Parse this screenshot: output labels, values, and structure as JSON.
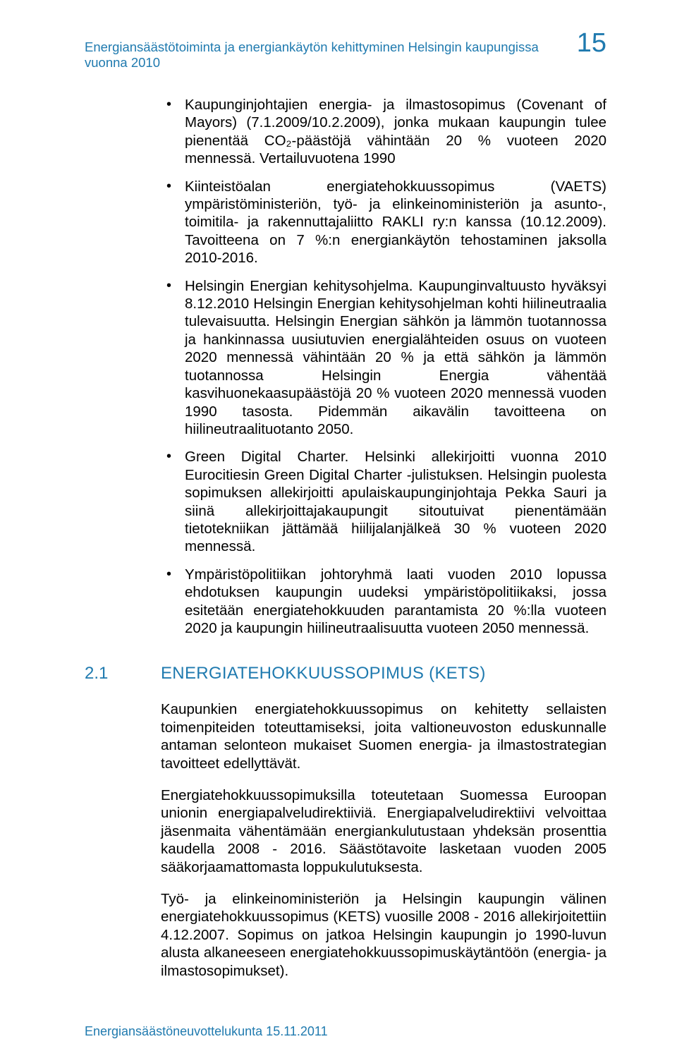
{
  "colors": {
    "accent": "#1f7aaf",
    "body_text": "#000000",
    "background": "#ffffff"
  },
  "typography": {
    "body_fontsize_pt": 15,
    "header_fontsize_pt": 14,
    "pagenum_fontsize_pt": 28,
    "section_fontsize_pt": 18,
    "font_family": "Arial"
  },
  "header": {
    "running_title": "Energiansäästötoiminta ja energiankäytön kehittyminen Helsingin kaupungissa vuonna 2010",
    "page_number": "15"
  },
  "bullets": [
    "Kaupunginjohtajien energia- ja ilmastosopimus (Covenant of Mayors) (7.1.2009/10.2.2009), jonka mukaan kaupungin tulee pienentää CO₂-päästöjä vähintään 20 % vuoteen 2020 mennessä. Vertailuvuotena 1990",
    "Kiinteistöalan energiatehokkuussopimus (VAETS) ympäristöministeriön, työ- ja elinkeinoministeriön ja asunto-, toimitila- ja rakennuttajaliitto RAKLI ry:n kanssa (10.12.2009). Tavoitteena on 7 %:n energiankäytön tehostaminen jaksolla 2010-2016.",
    "Helsingin Energian kehitysohjelma. Kaupunginvaltuusto hyväksyi 8.12.2010 Helsingin Energian kehitysohjelman kohti hiilineutraalia tulevaisuutta. Helsingin Energian sähkön ja lämmön tuotannossa ja hankinnassa uusiutuvien energialähteiden osuus on vuoteen 2020 mennessä vähintään 20 % ja että sähkön ja lämmön tuotannossa Helsingin Energia vähentää kasvihuonekaasupäästöjä 20 % vuoteen 2020 mennessä vuoden 1990 tasosta. Pidemmän aikavälin tavoitteena on hiilineutraalituotanto 2050.",
    "Green Digital Charter. Helsinki allekirjoitti vuonna 2010 Eurocitiesin Green Digital Charter -julistuksen. Helsingin puolesta sopimuksen allekirjoitti apulaiskaupunginjohtaja Pekka Sauri ja siinä allekirjoittajakaupungit sitoutuivat pienentämään tietotekniikan jättämää hiilijalanjälkeä 30 % vuoteen 2020 mennessä.",
    "Ympäristöpolitiikan johtoryhmä laati vuoden 2010 lopussa ehdotuksen kaupungin uudeksi ympäristöpolitiikaksi, jossa esitetään energiatehokkuuden parantamista 20 %:lla vuoteen 2020 ja kaupungin hiilineutraalisuutta vuoteen 2050 mennessä."
  ],
  "section": {
    "number": "2.1",
    "title": "ENERGIATEHOKKUUSSOPIMUS (KETS)"
  },
  "paragraphs": [
    "Kaupunkien energiatehokkuussopimus on kehitetty sellaisten toimenpiteiden toteuttamiseksi, joita valtioneuvoston eduskunnalle antaman selonteon mukaiset Suomen energia- ja ilmastostrategian tavoitteet edellyttävät.",
    "Energiatehokkuussopimuksilla toteutetaan Suomessa Euroopan unionin energiapalveludirektiiviä. Energiapalveludirektiivi velvoittaa jäsenmaita vähentämään energiankulutustaan yhdeksän prosenttia kaudella 2008 - 2016. Säästötavoite lasketaan vuoden 2005 sääkorjaamattomasta loppukulutuksesta.",
    "Työ- ja elinkeinoministeriön ja Helsingin kaupungin välinen energiatehokkuussopimus (KETS) vuosille 2008 - 2016 allekirjoitettiin 4.12.2007. Sopimus on jatkoa Helsingin kaupungin jo 1990-luvun alusta alkaneeseen energiatehokkuussopimuskäytäntöön (energia- ja ilmastosopimukset)."
  ],
  "footer": "Energiansäästöneuvottelukunta 15.11.2011"
}
